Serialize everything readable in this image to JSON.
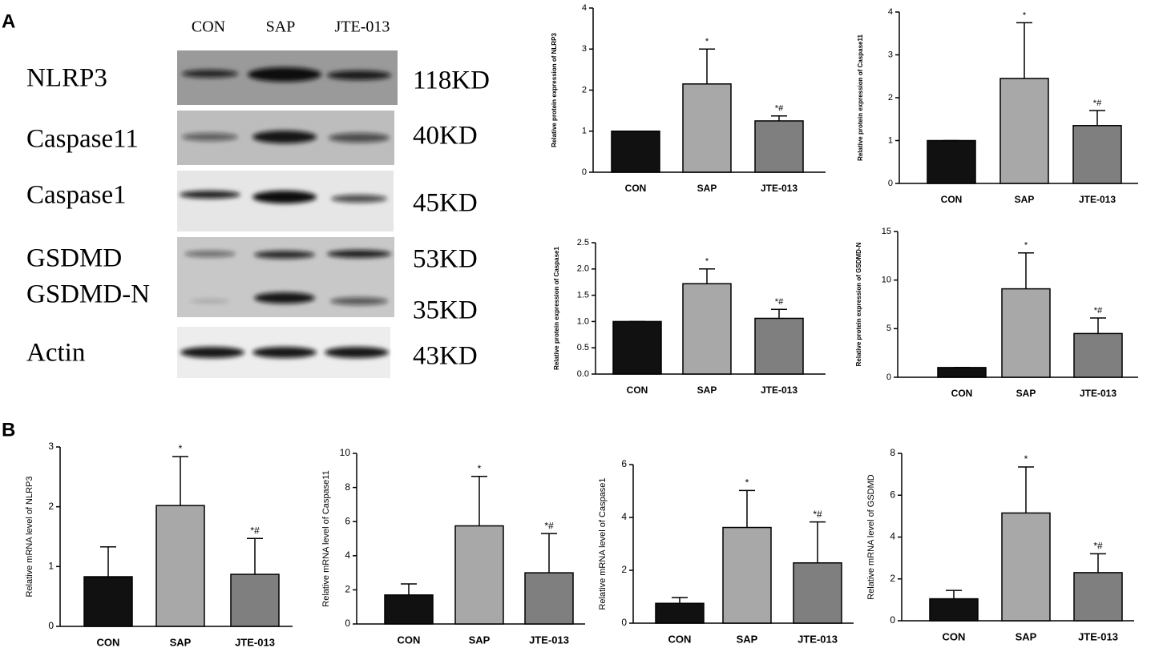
{
  "panels": [
    "A",
    "B"
  ],
  "blot": {
    "lanes": [
      "CON",
      "SAP",
      "JTE-013"
    ],
    "rows": [
      {
        "label": "NLRP3",
        "size": "118KD"
      },
      {
        "label": "Caspase11",
        "size": "40KD"
      },
      {
        "label": "Caspase1",
        "size": "45KD"
      },
      {
        "label": "GSDMD",
        "size": "53KD"
      },
      {
        "label": "GSDMD-N",
        "size": "35KD"
      },
      {
        "label": "Actin",
        "size": "43KD"
      }
    ]
  },
  "chart_data": [
    {
      "type": "bar",
      "ylabel": "Relative protein expression of NLRP3",
      "categories": [
        "CON",
        "SAP",
        "JTE-013"
      ],
      "values": [
        1,
        2.15,
        1.25
      ],
      "errors": [
        0,
        0.85,
        0.12
      ],
      "annotations": [
        null,
        "*",
        "*#"
      ],
      "colors": [
        "#111111",
        "#a8a8a8",
        "#7f7f7f"
      ],
      "ylim": [
        0,
        4
      ],
      "yticks": [
        0,
        1,
        2,
        3,
        4
      ]
    },
    {
      "type": "bar",
      "ylabel": "Relative protein expression of Caspase11",
      "categories": [
        "CON",
        "SAP",
        "JTE-013"
      ],
      "values": [
        1,
        2.45,
        1.35
      ],
      "errors": [
        0,
        1.3,
        0.35
      ],
      "annotations": [
        null,
        "*",
        "*#"
      ],
      "colors": [
        "#111111",
        "#a8a8a8",
        "#7f7f7f"
      ],
      "ylim": [
        0,
        4
      ],
      "yticks": [
        0,
        1,
        2,
        3,
        4
      ]
    },
    {
      "type": "bar",
      "ylabel": "Relative protein expression of Caspase1",
      "categories": [
        "CON",
        "SAP",
        "JTE-013"
      ],
      "values": [
        1,
        1.72,
        1.06
      ],
      "errors": [
        0,
        0.28,
        0.17
      ],
      "annotations": [
        null,
        "*",
        "*#"
      ],
      "colors": [
        "#111111",
        "#a8a8a8",
        "#7f7f7f"
      ],
      "ylim": [
        0,
        2.5
      ],
      "yticks": [
        {
          "value": 0,
          "label": "0.0"
        },
        0.5,
        {
          "value": 1,
          "label": "1.0"
        },
        1.5,
        {
          "value": 2,
          "label": "2.0"
        },
        2.5
      ]
    },
    {
      "type": "bar",
      "ylabel": "Relative protein expression of GSDMD-N",
      "categories": [
        "CON",
        "SAP",
        "JTE-013"
      ],
      "values": [
        1,
        9.1,
        4.5
      ],
      "errors": [
        0,
        3.7,
        1.6
      ],
      "annotations": [
        null,
        "*",
        "*#"
      ],
      "colors": [
        "#111111",
        "#a8a8a8",
        "#7f7f7f"
      ],
      "ylim": [
        0,
        15
      ],
      "yticks": [
        0,
        5,
        10,
        15
      ]
    },
    {
      "type": "bar",
      "ylabel": "Relative mRNA level of NLRP3",
      "categories": [
        "CON",
        "SAP",
        "JTE-013"
      ],
      "values": [
        0.83,
        2.02,
        0.87
      ],
      "errors": [
        0.5,
        0.82,
        0.6
      ],
      "annotations": [
        null,
        "*",
        "*#"
      ],
      "colors": [
        "#111111",
        "#a8a8a8",
        "#7f7f7f"
      ],
      "ylim": [
        0,
        3
      ],
      "yticks": [
        0,
        1,
        2,
        3
      ]
    },
    {
      "type": "bar",
      "ylabel": "Relative mRNA level of Caspase11",
      "categories": [
        "CON",
        "SAP",
        "JTE-013"
      ],
      "values": [
        1.7,
        5.75,
        3.0
      ],
      "errors": [
        0.65,
        2.9,
        2.3
      ],
      "annotations": [
        null,
        "*",
        "*#"
      ],
      "colors": [
        "#111111",
        "#a8a8a8",
        "#7f7f7f"
      ],
      "ylim": [
        0,
        10
      ],
      "yticks": [
        0,
        2,
        4,
        6,
        8,
        10
      ]
    },
    {
      "type": "bar",
      "ylabel": "Relative mRNA level of Caspase1",
      "categories": [
        "CON",
        "SAP",
        "JTE-013"
      ],
      "values": [
        0.75,
        3.62,
        2.28
      ],
      "errors": [
        0.22,
        1.4,
        1.55
      ],
      "annotations": [
        null,
        "*",
        "*#"
      ],
      "colors": [
        "#111111",
        "#a8a8a8",
        "#7f7f7f"
      ],
      "ylim": [
        0,
        6
      ],
      "yticks": [
        0,
        2,
        4,
        6
      ]
    },
    {
      "type": "bar",
      "ylabel": "Relative mRNA level of GSDMD",
      "categories": [
        "CON",
        "SAP",
        "JTE-013"
      ],
      "values": [
        1.05,
        5.15,
        2.3
      ],
      "errors": [
        0.4,
        2.2,
        0.9
      ],
      "annotations": [
        null,
        "*",
        "*#"
      ],
      "colors": [
        "#111111",
        "#a8a8a8",
        "#7f7f7f"
      ],
      "ylim": [
        0,
        8
      ],
      "yticks": [
        0,
        2,
        4,
        6,
        8
      ]
    }
  ]
}
